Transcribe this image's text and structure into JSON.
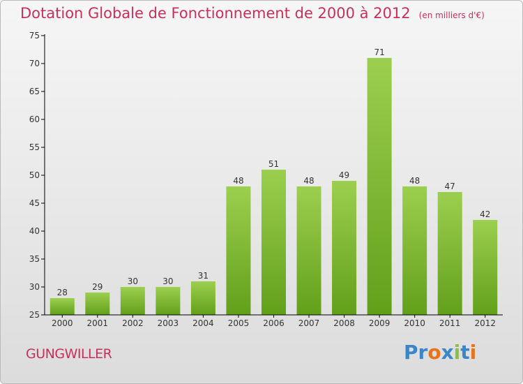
{
  "title": "Dotation Globale de Fonctionnement de 2000 à 2012",
  "unit": "(en milliers d'€)",
  "commune": "GUNGWILLER",
  "logo": {
    "text": "Proxiti",
    "colors": [
      "#3b86c8",
      "#3b86c8",
      "#e8731c",
      "#3b86c8",
      "#8cbf3f",
      "#3b86c8",
      "#e8731c"
    ]
  },
  "colors": {
    "title": "#c6315a",
    "bar_light": "#9ccf4e",
    "bar_dark": "#62a01a",
    "axis": "#000000"
  },
  "chart_data": {
    "type": "bar",
    "title": "Dotation Globale de Fonctionnement de 2000 à 2012",
    "subtitle": "(en milliers d'€)",
    "categories": [
      "2000",
      "2001",
      "2002",
      "2003",
      "2004",
      "2005",
      "2006",
      "2007",
      "2008",
      "2009",
      "2010",
      "2011",
      "2012"
    ],
    "values": [
      28,
      29,
      30,
      30,
      31,
      48,
      51,
      48,
      49,
      71,
      48,
      47,
      42
    ],
    "ylim": [
      25,
      75
    ],
    "yticks": [
      25,
      30,
      35,
      40,
      45,
      50,
      55,
      60,
      65,
      70,
      75
    ],
    "xlabel": "",
    "ylabel": "",
    "grid": false
  }
}
